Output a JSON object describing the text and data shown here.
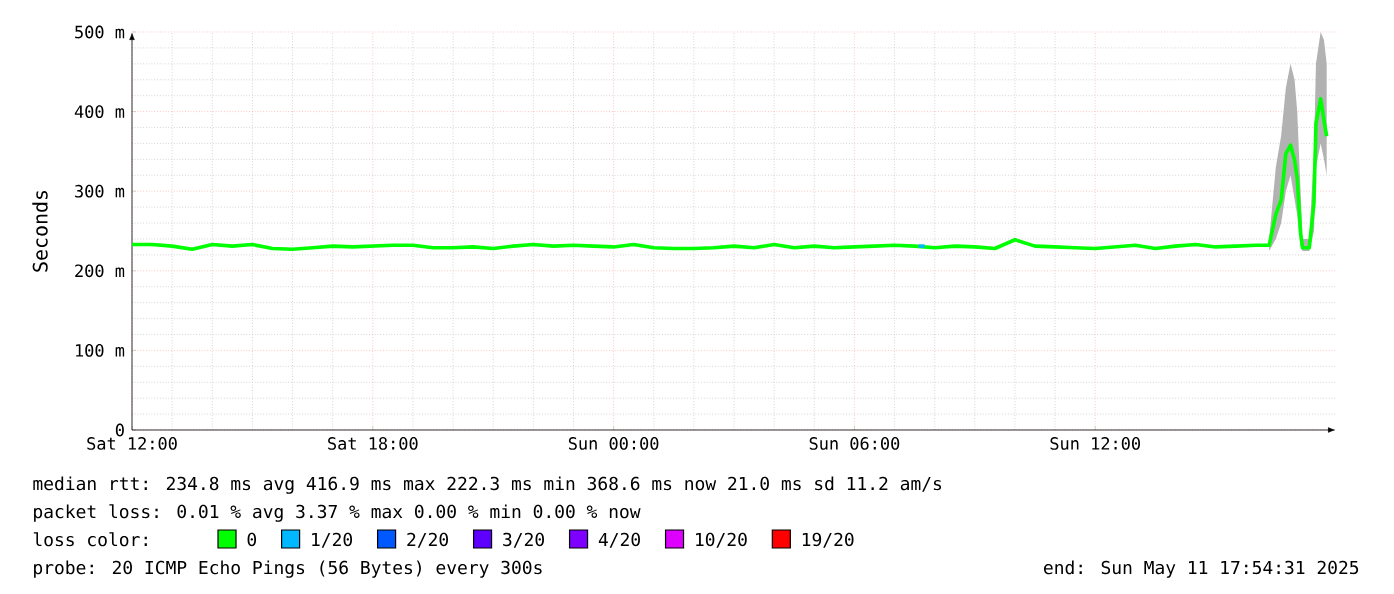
{
  "chart_data": {
    "type": "line",
    "ylabel": "Seconds",
    "xlim": [
      "2025-05-10T12:00",
      "2025-05-11T18:00"
    ],
    "ylim": [
      0,
      500
    ],
    "xticks": [
      {
        "value": "2025-05-10T12:00",
        "label": "Sat 12:00"
      },
      {
        "value": "2025-05-10T18:00",
        "label": "Sat 18:00"
      },
      {
        "value": "2025-05-11T00:00",
        "label": "Sun 00:00"
      },
      {
        "value": "2025-05-11T06:00",
        "label": "Sun 06:00"
      },
      {
        "value": "2025-05-11T12:00",
        "label": "Sun 12:00"
      }
    ],
    "yticks": [
      0,
      {
        "value": 100,
        "label": "100 m"
      },
      {
        "value": 200,
        "label": "200 m"
      },
      {
        "value": 300,
        "label": "300 m"
      },
      {
        "value": 400,
        "label": "400 m"
      },
      {
        "value": 500,
        "label": "500 m"
      }
    ],
    "grid": true,
    "legend": "bottom",
    "legend_title": "loss color:",
    "series": [
      {
        "name": "0",
        "color": "#00ff00",
        "x": [
          "2025-05-10T12:00",
          "2025-05-10T12:30",
          "2025-05-10T13:00",
          "2025-05-10T13:30",
          "2025-05-10T14:00",
          "2025-05-10T14:30",
          "2025-05-10T15:00",
          "2025-05-10T15:30",
          "2025-05-10T16:00",
          "2025-05-10T16:30",
          "2025-05-10T17:00",
          "2025-05-10T17:30",
          "2025-05-10T18:00",
          "2025-05-10T18:30",
          "2025-05-10T19:00",
          "2025-05-10T19:30",
          "2025-05-10T20:00",
          "2025-05-10T20:30",
          "2025-05-10T21:00",
          "2025-05-10T21:30",
          "2025-05-10T22:00",
          "2025-05-10T22:30",
          "2025-05-10T23:00",
          "2025-05-10T23:30",
          "2025-05-11T00:00",
          "2025-05-11T00:30",
          "2025-05-11T01:00",
          "2025-05-11T01:30",
          "2025-05-11T02:00",
          "2025-05-11T02:30",
          "2025-05-11T03:00",
          "2025-05-11T03:30",
          "2025-05-11T04:00",
          "2025-05-11T04:30",
          "2025-05-11T05:00",
          "2025-05-11T05:30",
          "2025-05-11T06:00",
          "2025-05-11T06:30",
          "2025-05-11T07:00",
          "2025-05-11T07:30",
          "2025-05-11T08:00",
          "2025-05-11T08:30",
          "2025-05-11T09:00",
          "2025-05-11T09:30",
          "2025-05-11T10:00",
          "2025-05-11T10:30",
          "2025-05-11T11:00",
          "2025-05-11T11:30",
          "2025-05-11T12:00",
          "2025-05-11T12:30",
          "2025-05-11T13:00",
          "2025-05-11T13:30",
          "2025-05-11T14:00",
          "2025-05-11T14:30",
          "2025-05-11T15:00",
          "2025-05-11T15:30",
          "2025-05-11T16:00",
          "2025-05-11T16:20",
          "2025-05-11T16:30",
          "2025-05-11T16:38",
          "2025-05-11T16:45",
          "2025-05-11T16:52",
          "2025-05-11T16:58",
          "2025-05-11T17:02",
          "2025-05-11T17:07",
          "2025-05-11T17:10",
          "2025-05-11T17:20",
          "2025-05-11T17:27",
          "2025-05-11T17:30",
          "2025-05-11T17:37",
          "2025-05-11T17:42",
          "2025-05-11T17:46"
        ],
        "values": [
          233,
          233,
          231,
          227,
          233,
          231,
          233,
          228,
          227,
          229,
          231,
          230,
          231,
          232,
          232,
          229,
          229,
          230,
          228,
          231,
          233,
          231,
          232,
          231,
          230,
          233,
          229,
          228,
          228,
          229,
          231,
          229,
          233,
          229,
          231,
          229,
          230,
          231,
          232,
          231,
          229,
          231,
          230,
          228,
          239,
          231,
          230,
          229,
          228,
          230,
          232,
          228,
          231,
          233,
          230,
          231,
          232,
          232,
          271,
          289,
          347,
          358,
          339,
          316,
          247,
          229,
          229,
          285,
          385,
          416,
          389,
          369
        ],
        "lower": [
          null,
          null,
          null,
          null,
          null,
          null,
          null,
          null,
          null,
          null,
          null,
          null,
          null,
          null,
          null,
          null,
          null,
          null,
          null,
          null,
          null,
          null,
          null,
          null,
          null,
          null,
          null,
          null,
          null,
          null,
          null,
          null,
          null,
          null,
          null,
          null,
          null,
          null,
          null,
          null,
          null,
          null,
          null,
          null,
          null,
          null,
          null,
          null,
          null,
          null,
          null,
          null,
          null,
          null,
          null,
          null,
          null,
          225,
          240,
          260,
          300,
          320,
          290,
          270,
          230,
          225,
          225,
          250,
          330,
          360,
          340,
          320
        ],
        "upper": [
          null,
          null,
          null,
          null,
          null,
          null,
          null,
          null,
          null,
          null,
          null,
          null,
          null,
          null,
          null,
          null,
          null,
          null,
          null,
          null,
          null,
          null,
          null,
          null,
          null,
          null,
          null,
          null,
          null,
          null,
          null,
          null,
          null,
          null,
          null,
          null,
          null,
          null,
          null,
          null,
          null,
          null,
          null,
          null,
          null,
          null,
          null,
          null,
          null,
          null,
          null,
          null,
          null,
          null,
          null,
          null,
          null,
          240,
          330,
          370,
          430,
          460,
          440,
          400,
          300,
          240,
          240,
          350,
          460,
          500,
          490,
          460
        ]
      },
      {
        "name": "1/20",
        "color": "#00b8ff",
        "x": [
          "2025-05-11T07:36",
          "2025-05-11T07:45"
        ],
        "values": [
          231,
          231
        ]
      },
      {
        "name": "2/20",
        "color": "#0059ff"
      },
      {
        "name": "3/20",
        "color": "#5e00ff"
      },
      {
        "name": "4/20",
        "color": "#7e00ff"
      },
      {
        "name": "10/20",
        "color": "#dd00ff"
      },
      {
        "name": "19/20",
        "color": "#ff0000"
      }
    ],
    "annotations": [
      "median rtt: 234.8 ms avg 416.9 ms max 222.3 ms min 368.6 ms now 21.0 ms sd 11.2 am/s",
      "packet loss: 0.01 % avg 3.37 % max 0.00 % min 0.00 % now",
      "probe: 20 ICMP Echo Pings (56 Bytes) every 300s",
      "end: Sun May 11 17:54:31 2025"
    ]
  }
}
